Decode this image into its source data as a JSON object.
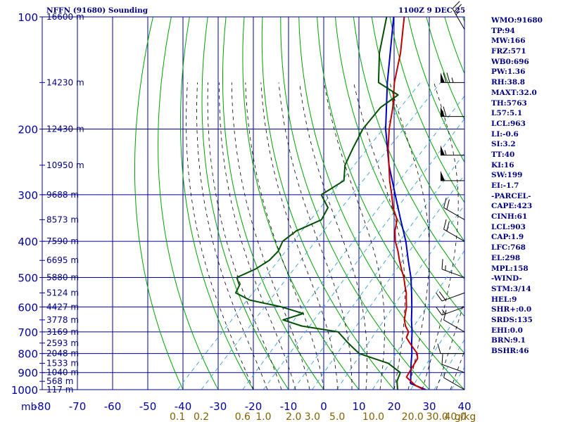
{
  "header": {
    "station": "NFFN (91680) Sounding",
    "time": "1100Z  9 DEC 25"
  },
  "sidebar": {
    "items": [
      "WMO:91680",
      "TP:94",
      "MW:166",
      "FRZ:571",
      "WB0:696",
      "PW:1.36",
      "RH:38.8",
      "MAXT:32.0",
      "TH:5763",
      "L57:5.1",
      "LCL:963",
      "LI:-0.6",
      "SI:3.2",
      "TT:40",
      "KI:16",
      "SW:199",
      "EI:-1.7",
      "-PARCEL-",
      "CAPE:423",
      "CINH:61",
      "LCL:903",
      "CAP:1.9",
      "LFC:768",
      "EL:298",
      "MPL:158",
      "-WIND-",
      "STM:3/14",
      "HEL:9",
      "SHR+:0.0",
      "SRDS:135",
      "EHI:0.0",
      "BRN:9.1",
      "BSHR:46"
    ]
  },
  "colors": {
    "background": "#ffffff",
    "grid": "#0000a0",
    "dry_adiabat": "#00a000",
    "moist_adiabat": "#000000",
    "mixing_ratio": "#4aa8d8",
    "temperature": "#c00000",
    "dewpoint": "#005000",
    "parcel": "#0000c0",
    "label_text": "#000080",
    "mix_label_text": "#806000"
  },
  "chart_data": {
    "type": "skew-t",
    "title": "NFFN (91680) Sounding",
    "pressure_axis_label": "mb",
    "pressure_levels": [
      100,
      200,
      300,
      400,
      500,
      600,
      700,
      800,
      900,
      1000
    ],
    "pressure_ticks": [
      100,
      150,
      200,
      250,
      300,
      350,
      400,
      450,
      500,
      550,
      600,
      650,
      700,
      750,
      800,
      850,
      900,
      950,
      1000
    ],
    "temperature_ticks": [
      -80,
      -70,
      -60,
      -50,
      -40,
      -30,
      -20,
      -10,
      0,
      10,
      20,
      30,
      40
    ],
    "xlim": [
      -80,
      40
    ],
    "ylim": [
      1000,
      100
    ],
    "height_labels": [
      {
        "p": 100,
        "label": "16600 m"
      },
      {
        "p": 150,
        "label": "14230 m"
      },
      {
        "p": 200,
        "label": "12430 m"
      },
      {
        "p": 250,
        "label": "10950 m"
      },
      {
        "p": 300,
        "label": "9688 m"
      },
      {
        "p": 350,
        "label": "8573 m"
      },
      {
        "p": 400,
        "label": "7590 m"
      },
      {
        "p": 450,
        "label": "6695 m"
      },
      {
        "p": 500,
        "label": "5880 m"
      },
      {
        "p": 550,
        "label": "5124 m"
      },
      {
        "p": 600,
        "label": "4427 m"
      },
      {
        "p": 650,
        "label": "3778 m"
      },
      {
        "p": 700,
        "label": "3169 m"
      },
      {
        "p": 750,
        "label": "2593 m"
      },
      {
        "p": 800,
        "label": "2048 m"
      },
      {
        "p": 850,
        "label": "1533 m"
      },
      {
        "p": 900,
        "label": "1040 m"
      },
      {
        "p": 950,
        "label": "568 m"
      },
      {
        "p": 1000,
        "label": "117 m"
      }
    ],
    "mixing_ratio_labels": [
      "0.1",
      "0.2",
      "0.6",
      "1.0",
      "2.0",
      "3.0",
      "5.0",
      "10.0",
      "20.0",
      "30.0",
      "40.0",
      "g/kg"
    ],
    "mixing_ratio_values": [
      0.1,
      0.2,
      0.6,
      1.0,
      2.0,
      3.0,
      5.0,
      10.0,
      20.0,
      30.0,
      40.0
    ],
    "temperature": {
      "name": "Temperature",
      "points": [
        [
          1000,
          28.5
        ],
        [
          975,
          25
        ],
        [
          950,
          22.5
        ],
        [
          925,
          20
        ],
        [
          900,
          19.5
        ],
        [
          875,
          19
        ],
        [
          850,
          18.5
        ],
        [
          825,
          18
        ],
        [
          800,
          16.5
        ],
        [
          750,
          11.5
        ],
        [
          725,
          9
        ],
        [
          700,
          8
        ],
        [
          675,
          5.5
        ],
        [
          650,
          3.5
        ],
        [
          625,
          2
        ],
        [
          600,
          0.5
        ],
        [
          575,
          -1.5
        ],
        [
          550,
          -3.5
        ],
        [
          525,
          -6
        ],
        [
          500,
          -8.5
        ],
        [
          475,
          -11.5
        ],
        [
          450,
          -14.5
        ],
        [
          425,
          -17.5
        ],
        [
          400,
          -21
        ],
        [
          375,
          -24
        ],
        [
          350,
          -26.5
        ],
        [
          325,
          -31
        ],
        [
          300,
          -35
        ],
        [
          275,
          -39.5
        ],
        [
          250,
          -44
        ],
        [
          225,
          -49
        ],
        [
          200,
          -54
        ],
        [
          175,
          -59
        ],
        [
          150,
          -65.5
        ],
        [
          125,
          -72
        ],
        [
          100,
          -81
        ]
      ]
    },
    "dewpoint": {
      "name": "Dewpoint",
      "points": [
        [
          1000,
          21
        ],
        [
          950,
          18.5
        ],
        [
          900,
          17
        ],
        [
          850,
          11
        ],
        [
          800,
          0
        ],
        [
          750,
          -6
        ],
        [
          700,
          -12
        ],
        [
          675,
          -24
        ],
        [
          650,
          -31
        ],
        [
          625,
          -27
        ],
        [
          600,
          -35
        ],
        [
          575,
          -46
        ],
        [
          550,
          -52
        ],
        [
          525,
          -53
        ],
        [
          500,
          -56
        ],
        [
          475,
          -53
        ],
        [
          450,
          -51.5
        ],
        [
          425,
          -51.5
        ],
        [
          400,
          -53
        ],
        [
          375,
          -52
        ],
        [
          350,
          -48
        ],
        [
          325,
          -49.5
        ],
        [
          300,
          -55
        ],
        [
          275,
          -52.5
        ],
        [
          250,
          -56.5
        ],
        [
          225,
          -59
        ],
        [
          200,
          -61.5
        ],
        [
          175,
          -62.5
        ],
        [
          162,
          -61
        ],
        [
          150,
          -70
        ],
        [
          125,
          -78
        ],
        [
          100,
          -86
        ]
      ]
    },
    "parcel": {
      "name": "Parcel",
      "points": [
        [
          1000,
          29
        ],
        [
          963,
          23
        ],
        [
          900,
          20
        ],
        [
          850,
          17.5
        ],
        [
          800,
          15
        ],
        [
          750,
          12
        ],
        [
          700,
          9
        ],
        [
          650,
          5.5
        ],
        [
          600,
          2
        ],
        [
          550,
          -2
        ],
        [
          500,
          -6.5
        ],
        [
          450,
          -12
        ],
        [
          400,
          -18
        ],
        [
          350,
          -25.5
        ],
        [
          300,
          -34
        ],
        [
          250,
          -44
        ],
        [
          200,
          -55
        ],
        [
          150,
          -67.5
        ],
        [
          100,
          -84
        ]
      ]
    },
    "wind_barbs": [
      {
        "p": 108,
        "dir": 330,
        "speed": 25
      },
      {
        "p": 150,
        "dir": 270,
        "speed": 75
      },
      {
        "p": 185,
        "dir": 270,
        "speed": 60
      },
      {
        "p": 235,
        "dir": 270,
        "speed": 55
      },
      {
        "p": 275,
        "dir": 270,
        "speed": 50
      },
      {
        "p": 350,
        "dir": 300,
        "speed": 20
      },
      {
        "p": 400,
        "dir": 300,
        "speed": 20
      },
      {
        "p": 500,
        "dir": 290,
        "speed": 15
      },
      {
        "p": 550,
        "dir": 250,
        "speed": 20
      },
      {
        "p": 600,
        "dir": 250,
        "speed": 15
      },
      {
        "p": 700,
        "dir": 300,
        "speed": 10
      },
      {
        "p": 800,
        "dir": 270,
        "speed": 10
      },
      {
        "p": 900,
        "dir": 290,
        "speed": 10
      },
      {
        "p": 1000,
        "dir": 300,
        "speed": 5
      }
    ]
  }
}
